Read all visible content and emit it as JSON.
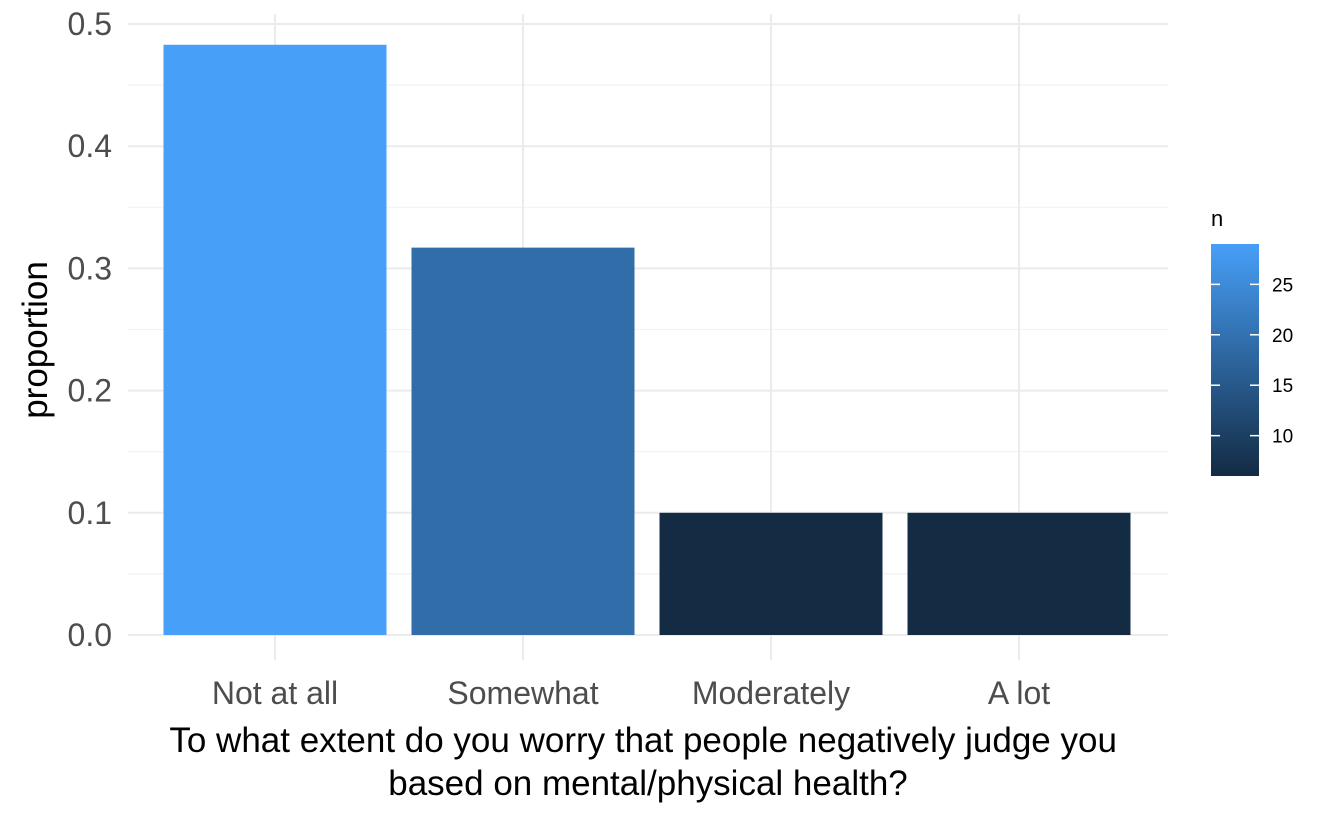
{
  "chart_data": {
    "type": "bar",
    "categories": [
      "Not at all",
      "Somewhat",
      "Moderately",
      "A lot"
    ],
    "values": [
      0.483,
      0.317,
      0.1,
      0.1
    ],
    "counts": [
      29,
      19,
      6,
      6
    ],
    "xlabel_lines": [
      "To what extent do you worry that people negatively judge you",
      "based on mental/physical health?"
    ],
    "ylabel": "proportion",
    "ylim": [
      0,
      0.5
    ],
    "yticks": [
      0.0,
      0.1,
      0.2,
      0.3,
      0.4,
      0.5
    ],
    "ytick_labels": [
      "0.0",
      "0.1",
      "0.2",
      "0.3",
      "0.4",
      "0.5"
    ],
    "grid": true,
    "legend": {
      "title": "n",
      "type": "colorbar",
      "placement": "right",
      "range": [
        6,
        29
      ],
      "breaks": [
        10,
        15,
        20,
        25
      ],
      "break_labels": [
        "10",
        "15",
        "20",
        "25"
      ],
      "low_color": "#132b43",
      "high_color": "#479ff8"
    }
  }
}
